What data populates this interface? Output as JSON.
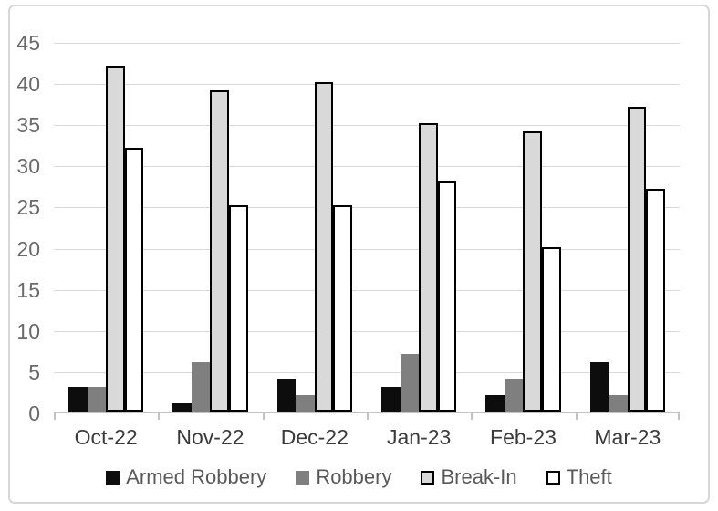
{
  "chart_data": {
    "type": "bar",
    "title": "",
    "xlabel": "",
    "ylabel": "",
    "categories": [
      "Oct-22",
      "Nov-22",
      "Dec-22",
      "Jan-23",
      "Feb-23",
      "Mar-23"
    ],
    "series": [
      {
        "name": "Armed Robbery",
        "values": [
          3,
          1,
          4,
          3,
          2,
          6
        ],
        "fill": "#0d0d0d",
        "border": "none"
      },
      {
        "name": "Robbery",
        "values": [
          3,
          6,
          2,
          7,
          4,
          2
        ],
        "fill": "#7f7f7f",
        "border": "none"
      },
      {
        "name": "Break-In",
        "values": [
          42,
          39,
          40,
          35,
          34,
          37
        ],
        "fill": "#d9d9d9",
        "border": "#000000"
      },
      {
        "name": "Theft",
        "values": [
          32,
          25,
          25,
          28,
          20,
          27
        ],
        "fill": "#ffffff",
        "border": "#000000"
      }
    ],
    "ylim": [
      0,
      45
    ],
    "y_tick_step": 5,
    "y_tick_labels": [
      "45",
      "40",
      "35",
      "30",
      "25",
      "20",
      "15",
      "10",
      "5",
      "0"
    ],
    "grid": true,
    "legend_position": "bottom"
  },
  "colors": {
    "gridline": "#d9d9d9",
    "axis_line": "#c3c3c3",
    "y_tick_text": "#6a6a6a",
    "x_tick_text": "#3a3a3a",
    "legend_text": "#595959",
    "chart_frame_border": "#d7d7d7",
    "background": "#ffffff",
    "bar_outline": "#000000"
  }
}
